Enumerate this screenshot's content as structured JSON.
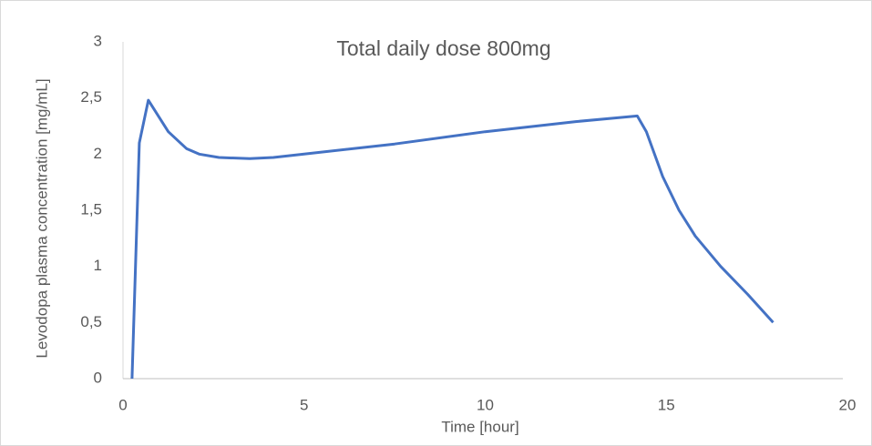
{
  "chart_data": {
    "type": "line",
    "title": "Total daily dose 800mg",
    "x_label": "Time [hour]",
    "y_label": "Levodopa plasma concentration [mg/mL]",
    "x": [
      0.25,
      0.45,
      0.7,
      1.25,
      1.75,
      2.1,
      2.65,
      3.5,
      4.15,
      5,
      7.5,
      10,
      12.5,
      14.2,
      14.45,
      14.9,
      15.35,
      15.8,
      16.5,
      17.25,
      17.95
    ],
    "values": [
      0,
      2.1,
      2.48,
      2.2,
      2.05,
      2.0,
      1.97,
      1.96,
      1.97,
      2.0,
      2.09,
      2.2,
      2.29,
      2.34,
      2.2,
      1.8,
      1.5,
      1.27,
      1.0,
      0.75,
      0.5
    ],
    "color": "#4472c4",
    "xlim": [
      0,
      20
    ],
    "xticks": [
      0,
      5,
      10,
      15,
      20
    ],
    "ylim": [
      0,
      3
    ],
    "yticks": [
      0,
      {
        "value": 0.5,
        "label": "0,5"
      },
      1,
      {
        "value": 1.5,
        "label": "1,5"
      },
      2,
      {
        "value": 2.5,
        "label": "2,5"
      },
      3
    ],
    "grid": false
  }
}
